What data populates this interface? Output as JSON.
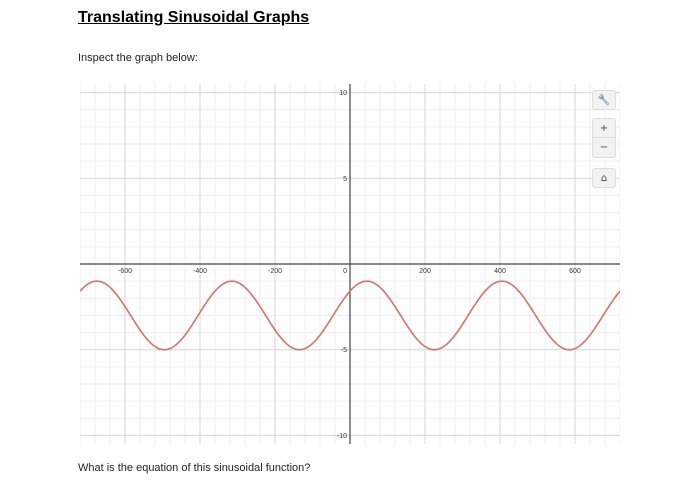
{
  "page": {
    "title": "Translating Sinusoidal Graphs",
    "prompt": "Inspect the graph below:",
    "question": "What is the equation of this sinusoidal function?"
  },
  "toolbar": {
    "settings_icon": "wrench-icon",
    "zoom_in_label": "+",
    "zoom_out_label": "−",
    "home_icon": "home-icon"
  },
  "chart_data": {
    "type": "line",
    "title": "",
    "xlabel": "",
    "ylabel": "",
    "xlim": [
      -720,
      720
    ],
    "ylim": [
      -10.5,
      10.5
    ],
    "x_ticks": [
      -600,
      -400,
      -200,
      0,
      200,
      400,
      600
    ],
    "x_tick_labels": [
      "-600",
      "-400",
      "-200",
      "0",
      "200",
      "400",
      "600"
    ],
    "y_ticks": [
      10,
      5,
      0,
      -5,
      -10
    ],
    "y_tick_labels": [
      "10",
      "5",
      "0",
      "-5",
      "-10"
    ],
    "grid": true,
    "series": [
      {
        "function": "y = 2sin(x + 45) - 3",
        "x_start": -720,
        "x_end": 720,
        "max": -1,
        "min": -5,
        "color": "#d4726a"
      }
    ]
  }
}
